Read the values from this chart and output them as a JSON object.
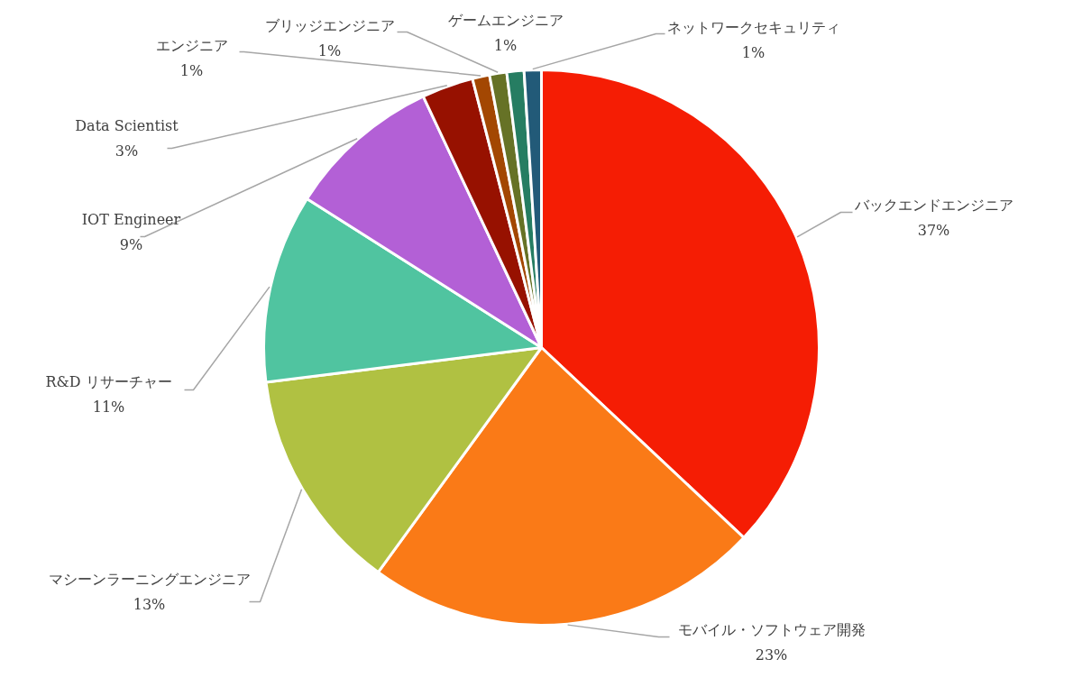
{
  "chart_data": {
    "type": "pie",
    "categories": [
      "バックエンドエンジニア",
      "モバイル・ソフトウェア開発",
      "マシーンラーニングエンジニア",
      "R&D リサーチャー",
      "IOT Engineer",
      "Data Scientist",
      "エンジニア",
      "ブリッジエンジニア",
      "ゲームエンジニア",
      "ネットワークセキュリティ"
    ],
    "values": [
      37,
      23,
      13,
      11,
      9,
      3,
      1,
      1,
      1,
      1
    ],
    "value_labels": [
      "37%",
      "23%",
      "13%",
      "11%",
      "9%",
      "3%",
      "1%",
      "1%",
      "1%",
      "1%"
    ],
    "colors": [
      "#f51d04",
      "#fa7a17",
      "#b0c142",
      "#50c4a0",
      "#b360d6",
      "#971100",
      "#a34702",
      "#667226",
      "#267d62",
      "#225a78"
    ]
  }
}
